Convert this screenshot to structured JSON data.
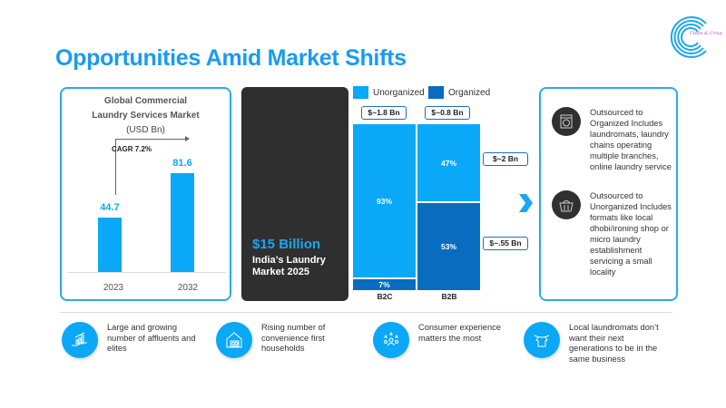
{
  "page": {
    "title": "Opportunities Amid Market Shifts",
    "logo_text": "Clean & Crisp"
  },
  "global_market": {
    "title_line1": "Global Commercial",
    "title_line2": "Laundry Services Market",
    "subtitle": "(USD Bn)",
    "cagr": "CAGR 7.2%",
    "bars": [
      {
        "year": "2023",
        "value": 44.7,
        "label": "44.7"
      },
      {
        "year": "2032",
        "value": 81.6,
        "label": "81.6"
      }
    ]
  },
  "india_market": {
    "headline": "$15 Billion",
    "sub_line1": "India’s Laundry",
    "sub_line2": "Market 2025"
  },
  "legend": {
    "unorganized": "Unorganized",
    "organized": "Organized",
    "unorganized_color": "#0aa8f6",
    "organized_color": "#0a6cbf"
  },
  "segments": {
    "b2c": {
      "label": "B2C",
      "total": "$~1.8 Bn",
      "unorganized_pct": 93,
      "organized_pct": 7,
      "unorganized_label": "93%",
      "organized_label": "7%"
    },
    "b2b": {
      "label": "B2B",
      "total": "$~0.8 Bn",
      "unorganized_pct": 47,
      "organized_pct": 53,
      "unorganized_label": "47%",
      "organized_label": "53%"
    },
    "side_pills": {
      "unorganized": "$~2 Bn",
      "organized": "$~.55 Bn"
    }
  },
  "descriptions": [
    {
      "icon": "laundromat-icon",
      "text": "Outsourced to Organized Includes laundromats, laundry chains operating multiple branches, online laundry service"
    },
    {
      "icon": "laundry-basket-icon",
      "text": "Outsourced to Unorganized Includes formats like local dhobi/ironing shop or micro laundry establishment servicing a small locality"
    }
  ],
  "features": [
    {
      "icon": "growth-chart-hand-icon",
      "text": "Large and growing number of affluents and elites"
    },
    {
      "icon": "house-washer-icon",
      "text": "Rising number of convenience first households"
    },
    {
      "icon": "people-stars-icon",
      "text": "Consumer experience matters the most"
    },
    {
      "icon": "shirt-hanger-icon",
      "text": "Local laundromats don’t want their next generations to be in the same business"
    }
  ]
}
